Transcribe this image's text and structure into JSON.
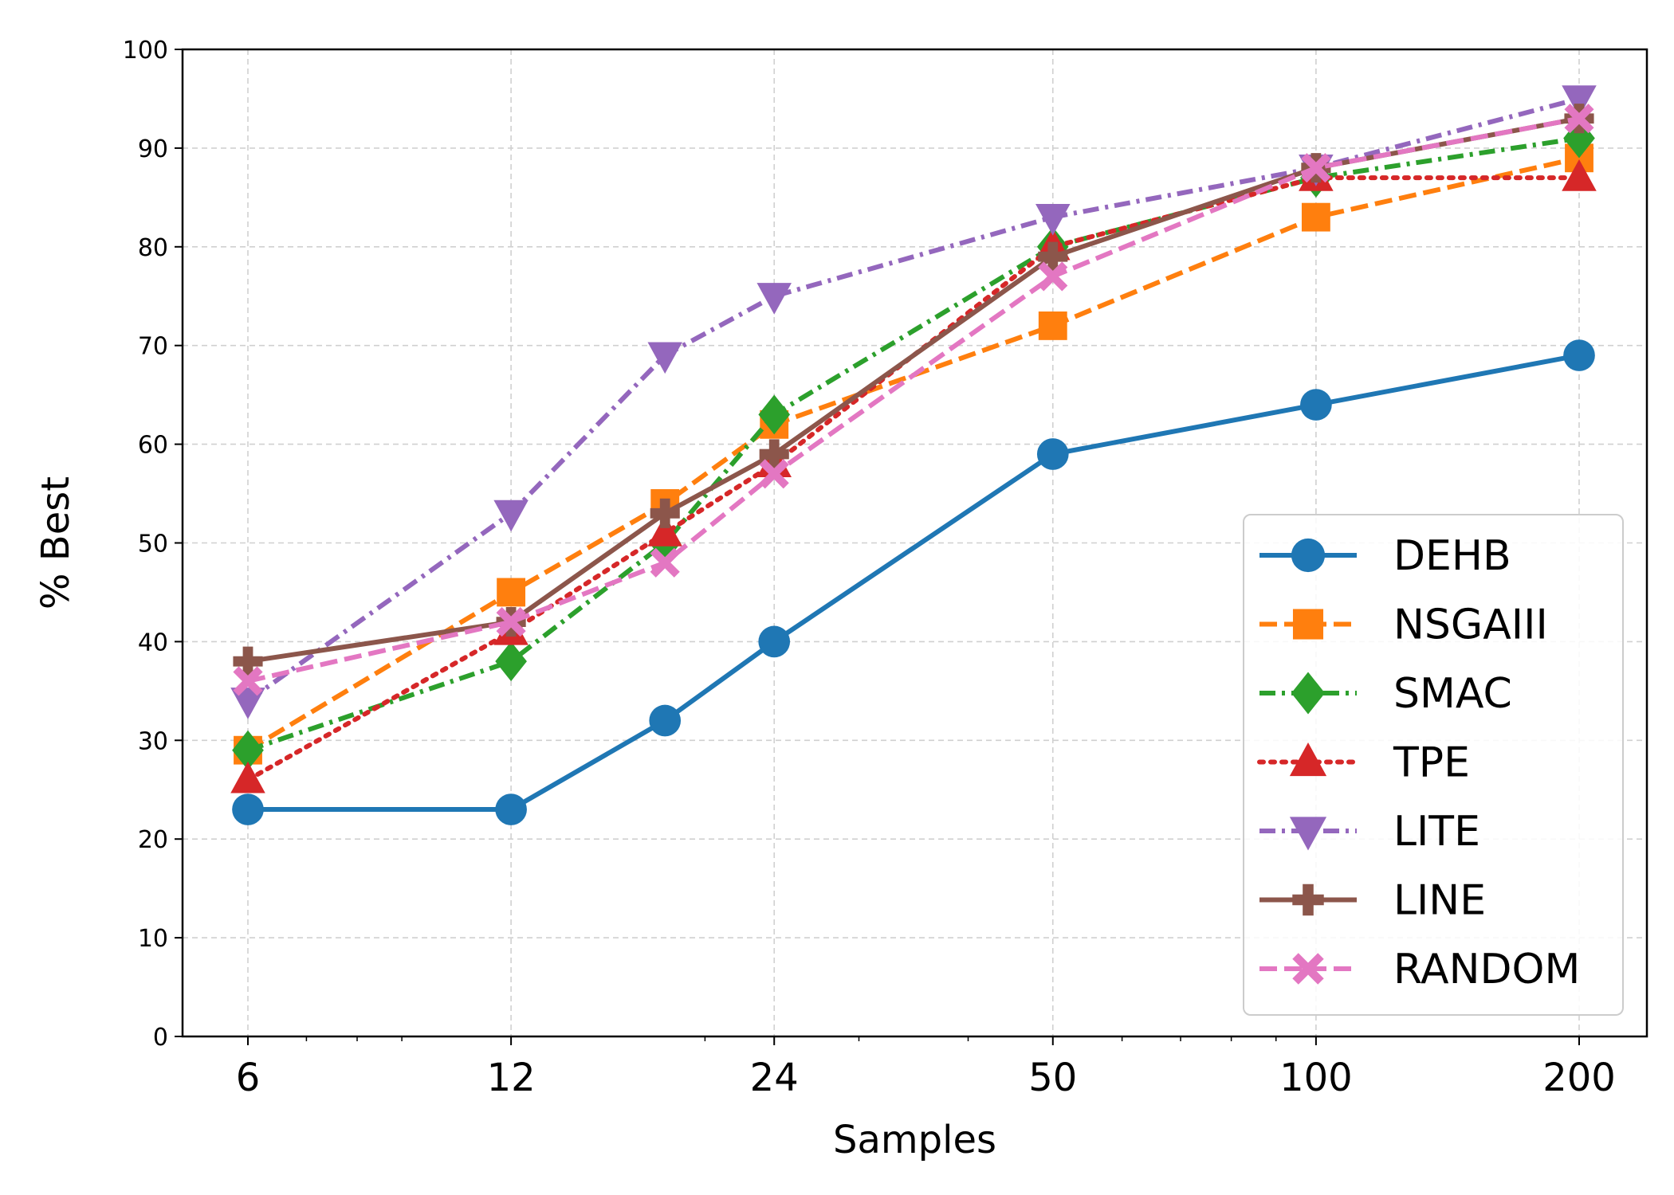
{
  "chart_data": {
    "type": "line",
    "title": "",
    "xlabel": "Samples",
    "ylabel": "% Best",
    "x_scale": "log",
    "x": [
      6,
      12,
      18,
      24,
      50,
      100,
      200
    ],
    "x_tick_labels": [
      "6",
      "12",
      "24",
      "50",
      "100",
      "200"
    ],
    "x_tick_values": [
      6,
      12,
      24,
      50,
      100,
      200
    ],
    "ylim": [
      0,
      100
    ],
    "y_ticks": [
      0,
      10,
      20,
      30,
      40,
      50,
      60,
      70,
      80,
      90,
      100
    ],
    "grid": true,
    "legend_position": "lower-right",
    "series": [
      {
        "name": "DEHB",
        "values": [
          23,
          23,
          32,
          40,
          59,
          64,
          69
        ],
        "color": "#1f77b4",
        "dash": "solid",
        "marker": "circle"
      },
      {
        "name": "NSGAIII",
        "values": [
          29,
          45,
          54,
          62,
          72,
          83,
          89
        ],
        "color": "#ff7f0e",
        "dash": "dashed",
        "marker": "square"
      },
      {
        "name": "SMAC",
        "values": [
          29,
          38,
          50,
          63,
          80,
          87,
          91
        ],
        "color": "#2ca02c",
        "dash": "dashdot",
        "marker": "diamond"
      },
      {
        "name": "TPE",
        "values": [
          26,
          41,
          51,
          58,
          80,
          87,
          87
        ],
        "color": "#d62728",
        "dash": "dotted",
        "marker": "triangle-up"
      },
      {
        "name": "LITE",
        "values": [
          34,
          53,
          69,
          75,
          83,
          88,
          95
        ],
        "color": "#9467bd",
        "dash": "dashdot",
        "marker": "triangle-down"
      },
      {
        "name": "LINE",
        "values": [
          38,
          42,
          53,
          59,
          79,
          88,
          93
        ],
        "color": "#8c564b",
        "dash": "solid",
        "marker": "plus"
      },
      {
        "name": "RANDOM",
        "values": [
          36,
          42,
          48,
          57,
          77,
          88,
          93
        ],
        "color": "#e377c2",
        "dash": "dashed",
        "marker": "x"
      }
    ]
  }
}
